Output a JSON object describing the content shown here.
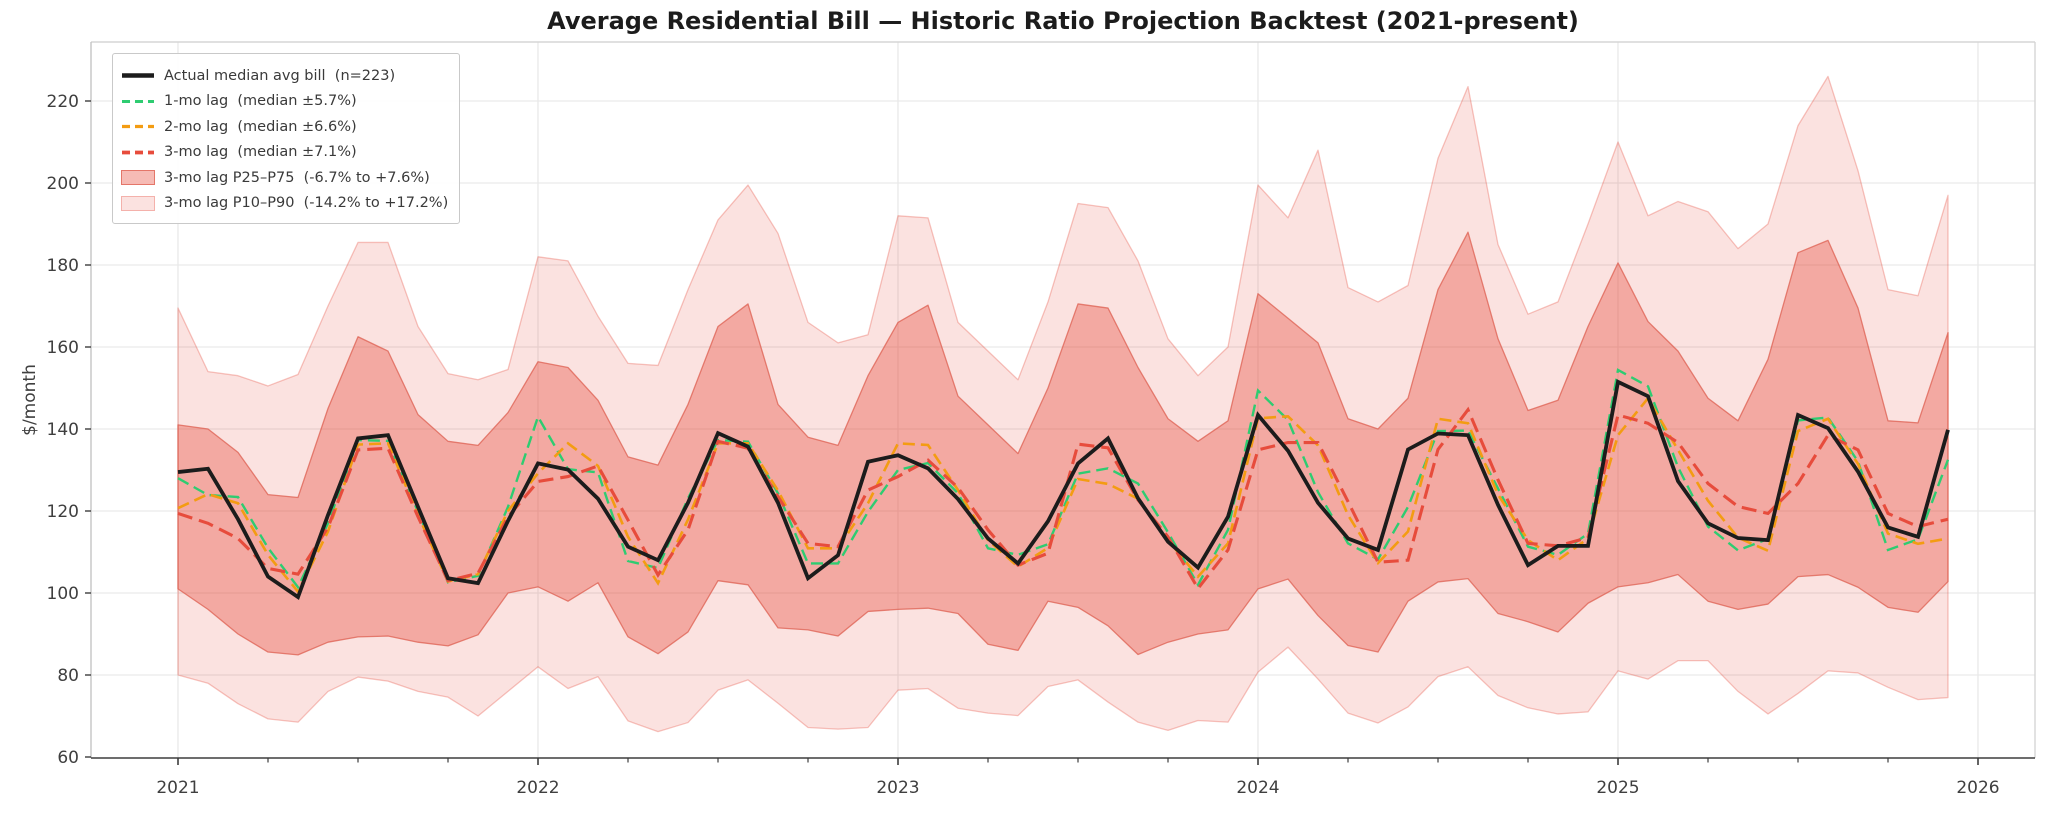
{
  "chart_data": {
    "type": "line",
    "title": "Average Residential Bill — Historic Ratio Projection Backtest (2021-present)",
    "ylabel": "$/month",
    "x_start_month": "2021-01",
    "points": 60,
    "x_tick_labels": [
      "2021",
      "2022",
      "2023",
      "2024",
      "2025",
      "2026"
    ],
    "y_ticks": [
      60,
      80,
      100,
      120,
      140,
      160,
      180,
      200,
      220
    ],
    "ylim": [
      60,
      234
    ],
    "grid": true,
    "legend_position": "upper-left",
    "series": [
      {
        "name": "Actual median avg bill  (n=223)",
        "color": "#1c1c1c",
        "style": "solid",
        "width": 3.8,
        "values": [
          129.5,
          130.3,
          118,
          104,
          99,
          119,
          137.7,
          138.5,
          121,
          103.6,
          102.4,
          117.6,
          131.6,
          130.1,
          123,
          111.3,
          108,
          122,
          139,
          135.7,
          122,
          103.6,
          109.2,
          132,
          133.6,
          130.4,
          122.9,
          113.3,
          107.2,
          117.5,
          131.6,
          137.7,
          123.1,
          112.5,
          106.2,
          118.6,
          143.4,
          134.7,
          122,
          113.3,
          110.5,
          135,
          138.9,
          138.5,
          121.5,
          106.8,
          111.5,
          111.5,
          151.5,
          148,
          127.3,
          117,
          113.4,
          112.9,
          143.4,
          140.2,
          129.6,
          116,
          113.7,
          139.8
        ]
      },
      {
        "name": "1-mo lag  (median ±5.7%)",
        "color": "#2ecc71",
        "style": "dashed",
        "width": 2.4,
        "dash": "12 6",
        "values": [
          128,
          123.9,
          123.4,
          111,
          101.4,
          117,
          137.3,
          137.1,
          119.8,
          102.6,
          104.2,
          121,
          143,
          130.2,
          129.4,
          107.8,
          106.1,
          123.1,
          137.3,
          136.9,
          124.3,
          107.2,
          107.2,
          119.8,
          130,
          131.7,
          124.3,
          110.9,
          109.3,
          111.9,
          129.1,
          130.4,
          126.7,
          114.8,
          102,
          115.4,
          149.4,
          142.2,
          124.6,
          112.1,
          108.2,
          121,
          139.5,
          139.6,
          125.5,
          111.3,
          109.3,
          114.5,
          154.4,
          150.4,
          130.7,
          116.2,
          110.4,
          113.2,
          142.1,
          142.8,
          132.1,
          110.5,
          113.1,
          132.5
        ]
      },
      {
        "name": "2-mo lag  (median ±6.6%)",
        "color": "#f39c12",
        "style": "dashed",
        "width": 2.6,
        "dash": "12 6",
        "values": [
          120.7,
          124.1,
          121.9,
          109.3,
          100.3,
          115,
          136.2,
          136.5,
          119,
          102.8,
          104.6,
          120,
          129.2,
          136.5,
          131,
          113.7,
          102.4,
          117.9,
          136.5,
          136.5,
          125,
          110.9,
          110.9,
          121.9,
          136.5,
          136.1,
          125.1,
          112.9,
          106.4,
          111,
          127.8,
          126.6,
          123,
          112.9,
          104,
          112.1,
          142.6,
          143.1,
          136,
          119,
          107.3,
          115,
          142.5,
          141.4,
          124,
          112.9,
          108,
          113.3,
          138.5,
          147.5,
          134.9,
          122.5,
          113.5,
          110.3,
          139.5,
          142.5,
          131.5,
          114.5,
          112,
          113.3
        ]
      },
      {
        "name": "3-mo lag  (median ±7.1%)",
        "color": "#e74c3c",
        "style": "dashed",
        "width": 3.1,
        "dash": "15 7",
        "values": [
          119.4,
          117,
          113.3,
          106,
          104.6,
          116,
          134.9,
          135.3,
          118.6,
          103,
          104.8,
          118.6,
          127.2,
          128.4,
          131,
          117.8,
          104.4,
          115.4,
          137,
          135.3,
          123.5,
          112.1,
          111.3,
          125.1,
          128.4,
          132.4,
          125.7,
          115.4,
          106.8,
          109.7,
          136.3,
          135.4,
          122.7,
          113.7,
          101.1,
          110.5,
          134.9,
          136.7,
          136.7,
          122.3,
          107.5,
          108,
          135,
          144.7,
          127.6,
          112.1,
          111.5,
          113.5,
          143.4,
          141.4,
          136.7,
          126.7,
          121.1,
          119.4,
          126.7,
          138.5,
          134.9,
          119.4,
          116.2,
          118
        ]
      }
    ],
    "bands": [
      {
        "name": "3-mo lag P10–P90  (-14.2% to +17.2%)",
        "fill": "rgba(231,76,60,0.16)",
        "edge": "rgba(231,76,60,0.32)",
        "upper": [
          169.5,
          154,
          153,
          150.5,
          153.3,
          170,
          185.5,
          185.5,
          165,
          153.5,
          152,
          154.5,
          182,
          181,
          167.5,
          156,
          155.5,
          174,
          191,
          199.5,
          187.7,
          166,
          161,
          163,
          192,
          191.5,
          166,
          159,
          152,
          171,
          195,
          194,
          181,
          162,
          153,
          160,
          199.5,
          191.5,
          208,
          174.5,
          171,
          175,
          206,
          223.5,
          185,
          168,
          171,
          190,
          210,
          192,
          195.5,
          193,
          184,
          190,
          214,
          226,
          203,
          174,
          172.5,
          197
        ],
        "lower": [
          80,
          78,
          73,
          69.3,
          68.5,
          76,
          79.5,
          78.5,
          76,
          74.6,
          70,
          76,
          82,
          76.7,
          79.6,
          68.8,
          66.2,
          68.4,
          76.3,
          78.8,
          73.1,
          67.2,
          66.8,
          67.2,
          76.3,
          76.7,
          71.9,
          70.7,
          70.1,
          77.2,
          78.8,
          73.4,
          68.5,
          66.5,
          68.9,
          68.5,
          80.7,
          86.8,
          79,
          70.7,
          68.3,
          72.2,
          79.6,
          82,
          75,
          72,
          70.5,
          71,
          81,
          79,
          83.5,
          83.5,
          76,
          70.5,
          75.5,
          81,
          80.5,
          77,
          74,
          74.5
        ]
      },
      {
        "name": "3-mo lag P25–P75  (-6.7% to +7.6%)",
        "fill": "rgba(231,76,60,0.38)",
        "edge": "rgba(221,95,80,0.75)",
        "upper": [
          141,
          140,
          134.3,
          124,
          123.3,
          145,
          162.5,
          159,
          143.5,
          137,
          136,
          144,
          156.4,
          155,
          147,
          133.2,
          131.2,
          146,
          165,
          170.5,
          146,
          138,
          136,
          153,
          166,
          170.2,
          148,
          141,
          134,
          150,
          170.5,
          169.5,
          155,
          142.5,
          137,
          142,
          173,
          167,
          161,
          142.5,
          140,
          147.5,
          174,
          188,
          162,
          144.5,
          147,
          165,
          180.5,
          166.2,
          159,
          147.5,
          142,
          157,
          183,
          186,
          169.5,
          142,
          141.5,
          163.5
        ],
        "lower": [
          101,
          96,
          90,
          85.6,
          84.9,
          88,
          89.3,
          89.5,
          88,
          87.1,
          89.8,
          100,
          101.5,
          98,
          102.5,
          89.3,
          85.2,
          90.5,
          103,
          102,
          91.5,
          91,
          89.5,
          95.5,
          96,
          96.3,
          95,
          87.5,
          86,
          98,
          96.5,
          92,
          85,
          88,
          90,
          91,
          101,
          103.4,
          94.5,
          87.2,
          85.6,
          98,
          102.7,
          103.5,
          95,
          93,
          90.5,
          97.5,
          101.5,
          102.5,
          104.5,
          98,
          96,
          97.3,
          104,
          104.5,
          101.4,
          96.5,
          95.3,
          102.8
        ]
      }
    ],
    "legend_order": [
      "series.0",
      "series.1",
      "series.2",
      "series.3",
      "bands.1",
      "bands.0"
    ],
    "axis_colors": {
      "grid": "#e9e9e9",
      "spine_light": "#d6d6d6",
      "spine_left": "#c4c4c4",
      "spine_bottom": "#3d3d3d",
      "tick": "#3d3d3d",
      "tick_label": "#3f3f3f"
    }
  }
}
